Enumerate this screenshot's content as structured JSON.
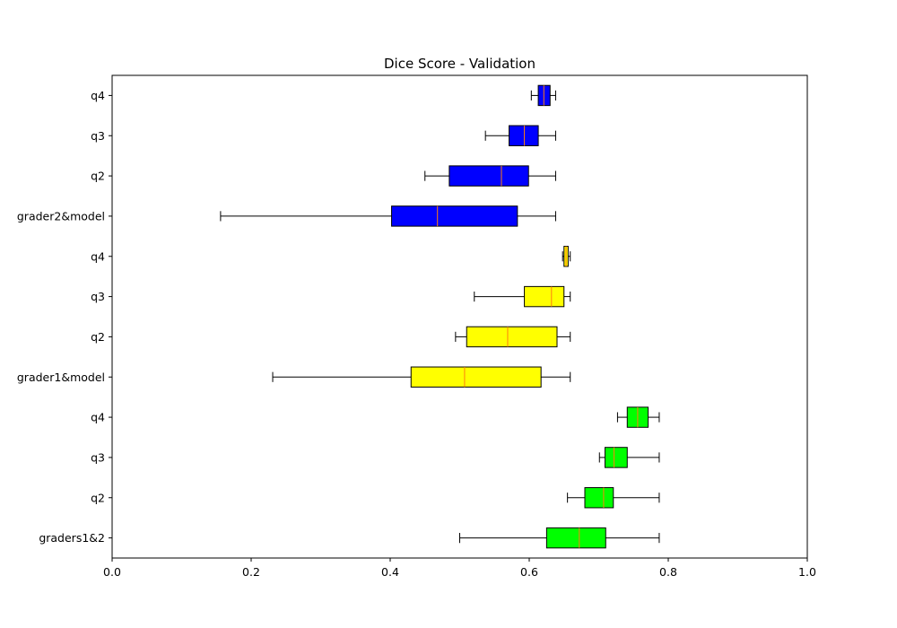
{
  "chart_data": {
    "type": "boxplot",
    "orientation": "horizontal",
    "title": "Dice Score - Validation",
    "xlabel": "",
    "ylabel": "",
    "xlim": [
      0.0,
      1.0
    ],
    "xticks": [
      0.0,
      0.2,
      0.4,
      0.6,
      0.8,
      1.0
    ],
    "xtick_labels": [
      "0.0",
      "0.2",
      "0.4",
      "0.6",
      "0.8",
      "1.0"
    ],
    "grid": false,
    "colors": {
      "blue": "#0000ff",
      "yellow": "#ffff00",
      "green": "#00ff00",
      "median": "#ff7f0e"
    },
    "boxes": [
      {
        "label": "graders1&2",
        "color": "#00ff00",
        "whisker_low": 0.5,
        "q1": 0.625,
        "median": 0.672,
        "q3": 0.71,
        "whisker_high": 0.787
      },
      {
        "label": "q2",
        "color": "#00ff00",
        "whisker_low": 0.655,
        "q1": 0.68,
        "median": 0.707,
        "q3": 0.721,
        "whisker_high": 0.787
      },
      {
        "label": "q3",
        "color": "#00ff00",
        "whisker_low": 0.701,
        "q1": 0.709,
        "median": 0.722,
        "q3": 0.741,
        "whisker_high": 0.787
      },
      {
        "label": "q4",
        "color": "#00ff00",
        "whisker_low": 0.727,
        "q1": 0.741,
        "median": 0.756,
        "q3": 0.771,
        "whisker_high": 0.787
      },
      {
        "label": "grader1&model",
        "color": "#ffff00",
        "whisker_low": 0.231,
        "q1": 0.43,
        "median": 0.507,
        "q3": 0.617,
        "whisker_high": 0.659
      },
      {
        "label": "q2",
        "color": "#ffff00",
        "whisker_low": 0.494,
        "q1": 0.51,
        "median": 0.569,
        "q3": 0.64,
        "whisker_high": 0.659
      },
      {
        "label": "q3",
        "color": "#ffff00",
        "whisker_low": 0.521,
        "q1": 0.593,
        "median": 0.632,
        "q3": 0.65,
        "whisker_high": 0.659
      },
      {
        "label": "q4",
        "color": "#ffff00",
        "whisker_low": 0.648,
        "q1": 0.65,
        "median": 0.653,
        "q3": 0.656,
        "whisker_high": 0.659
      },
      {
        "label": "grader2&model",
        "color": "#0000ff",
        "whisker_low": 0.156,
        "q1": 0.402,
        "median": 0.468,
        "q3": 0.583,
        "whisker_high": 0.638
      },
      {
        "label": "q2",
        "color": "#0000ff",
        "whisker_low": 0.45,
        "q1": 0.485,
        "median": 0.56,
        "q3": 0.599,
        "whisker_high": 0.638
      },
      {
        "label": "q3",
        "color": "#0000ff",
        "whisker_low": 0.537,
        "q1": 0.571,
        "median": 0.593,
        "q3": 0.613,
        "whisker_high": 0.638
      },
      {
        "label": "q4",
        "color": "#0000ff",
        "whisker_low": 0.603,
        "q1": 0.613,
        "median": 0.621,
        "q3": 0.63,
        "whisker_high": 0.638
      }
    ]
  }
}
